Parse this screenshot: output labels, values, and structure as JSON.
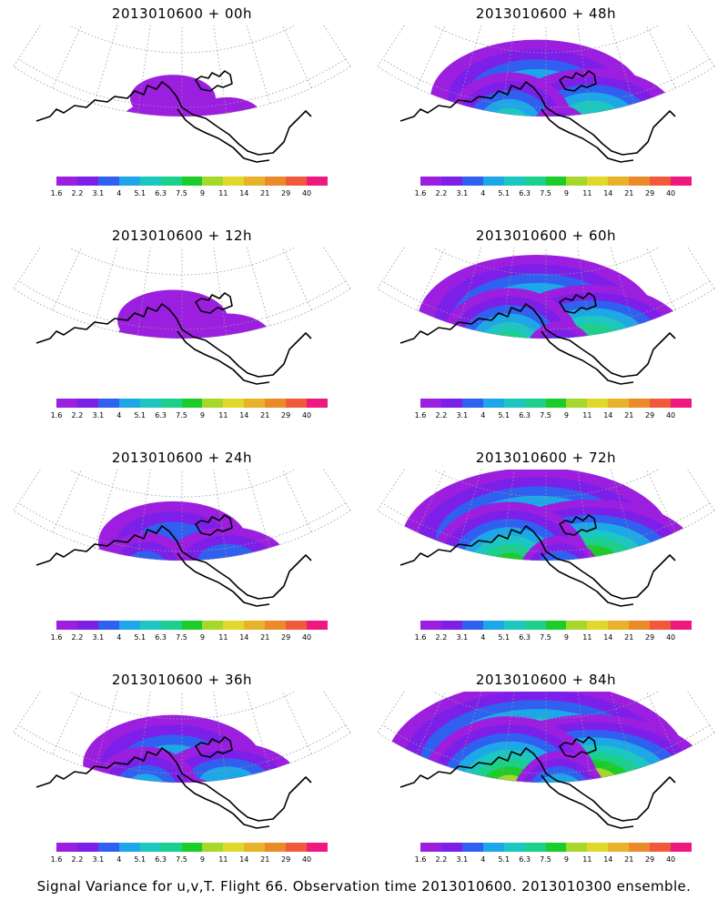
{
  "colors": [
    "#9c1fe0",
    "#7c1fe8",
    "#3060f0",
    "#1da7e8",
    "#1bc7c0",
    "#1ad08a",
    "#1ccd2a",
    "#a5d82a",
    "#e0d82a",
    "#e8b22a",
    "#ec8a2a",
    "#f05a3a",
    "#ee1880"
  ],
  "colorbar_labels": [
    "1.6",
    "2.2",
    "3.1",
    "4",
    "5.1",
    "6.3",
    "7.5",
    "9",
    "11",
    "14",
    "21",
    "29",
    "40"
  ],
  "panels": [
    {
      "title": "2013010600  +  00h",
      "level": 0.05
    },
    {
      "title": "2013010600  +  48h",
      "level": 0.55
    },
    {
      "title": "2013010600  +  12h",
      "level": 0.15
    },
    {
      "title": "2013010600  +  60h",
      "level": 0.65
    },
    {
      "title": "2013010600  +  24h",
      "level": 0.3
    },
    {
      "title": "2013010600  +  72h",
      "level": 0.78
    },
    {
      "title": "2013010600  +  36h",
      "level": 0.42
    },
    {
      "title": "2013010600  +  84h",
      "level": 0.9
    }
  ],
  "caption": "Signal Variance for u,v,T. Flight 66. Observation time 2013010600. 2013010300 ensemble."
}
